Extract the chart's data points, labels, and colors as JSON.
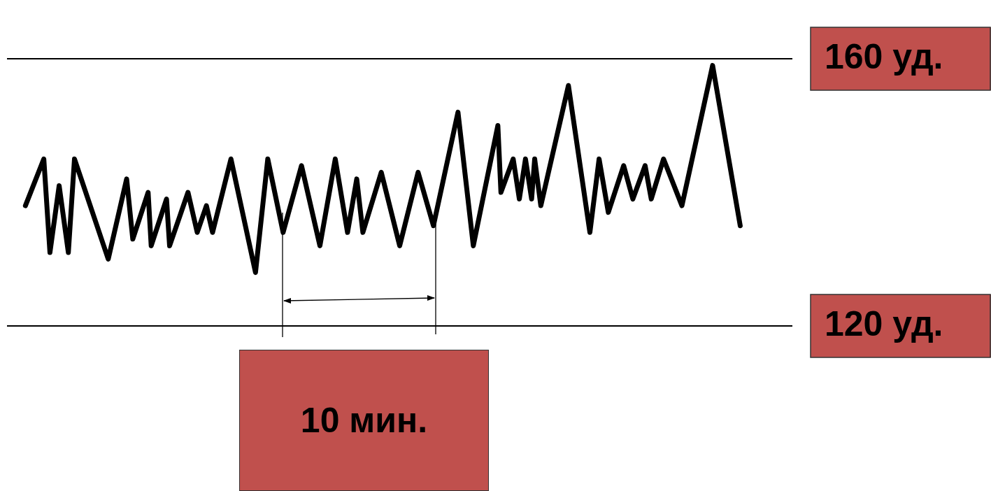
{
  "chart_data": {
    "type": "line",
    "categories": [
      null,
      null,
      null,
      null,
      null,
      null,
      null,
      null,
      null,
      null,
      null,
      null,
      null,
      null,
      null,
      null,
      null,
      null,
      null,
      null,
      null,
      null,
      null,
      null,
      null,
      null,
      null,
      null,
      null,
      null,
      null,
      null,
      null,
      null,
      null,
      null,
      null,
      null,
      null,
      null,
      null,
      null,
      null,
      null,
      null,
      null,
      null,
      null,
      null,
      null,
      null,
      null,
      null,
      null,
      null,
      null,
      null,
      null,
      null,
      null,
      null,
      null,
      null,
      null,
      null,
      null,
      null,
      null,
      null,
      null,
      null,
      null,
      null,
      null,
      null,
      null,
      null,
      null,
      null,
      null,
      null,
      null,
      null,
      null,
      null,
      null,
      null,
      null,
      null,
      null,
      null,
      null,
      null,
      null,
      null,
      null,
      null,
      null,
      null,
      null,
      null,
      null,
      null,
      null,
      null,
      null,
      null,
      null,
      null,
      null,
      null,
      null,
      null,
      null,
      null,
      null,
      null,
      null,
      null,
      null,
      null,
      null,
      null,
      null,
      null,
      null,
      null,
      null,
      null,
      null,
      null,
      null,
      null,
      null,
      null,
      null,
      null,
      null,
      null,
      null,
      null,
      null,
      null,
      null,
      null,
      null,
      null,
      null,
      null,
      null,
      null,
      null,
      null,
      null,
      null,
      null,
      null,
      null,
      null,
      null,
      null,
      null,
      null,
      null,
      null,
      null,
      null,
      null,
      null,
      null,
      null,
      null,
      null,
      null,
      null,
      null,
      null,
      null,
      null,
      null,
      null,
      null,
      null,
      null,
      null,
      null,
      null,
      null,
      null,
      null,
      null,
      null,
      null,
      null,
      null,
      null,
      null,
      null,
      null,
      null,
      null,
      null,
      null,
      null,
      null,
      null,
      null,
      null,
      null,
      null,
      null,
      null,
      null,
      null,
      null,
      null,
      null,
      null,
      null,
      null,
      null,
      null,
      null,
      null,
      null,
      null,
      null,
      null,
      null,
      null,
      null,
      null,
      null,
      null,
      null,
      null,
      null,
      null,
      null,
      null,
      null,
      null,
      null,
      null,
      null,
      null,
      null,
      null,
      null,
      null,
      null,
      null,
      null,
      null,
      null,
      null,
      null
    ],
    "series": [
      {
        "color": "#000000",
        "values": [
          null,
          null,
          null,
          null,
          null,
          null,
          138,
          null,
          null,
          null,
          null,
          null,
          145,
          null,
          131,
          null,
          null,
          141,
          null,
          null,
          131,
          null,
          145,
          null,
          null,
          null,
          null,
          null,
          null,
          null,
          null,
          null,
          null,
          130,
          null,
          null,
          null,
          null,
          null,
          142,
          null,
          133,
          null,
          null,
          null,
          null,
          140,
          132,
          null,
          null,
          null,
          null,
          139,
          132,
          null,
          null,
          null,
          null,
          null,
          140,
          null,
          null,
          134,
          null,
          null,
          138,
          null,
          134,
          null,
          null,
          null,
          null,
          null,
          145,
          null,
          null,
          null,
          null,
          null,
          null,
          null,
          128,
          null,
          null,
          null,
          145,
          null,
          null,
          null,
          null,
          134,
          null,
          null,
          null,
          null,
          null,
          144,
          null,
          null,
          null,
          null,
          null,
          132,
          null,
          null,
          null,
          null,
          145,
          null,
          null,
          null,
          134,
          null,
          null,
          142,
          null,
          134,
          null,
          null,
          null,
          null,
          null,
          143,
          null,
          null,
          null,
          null,
          null,
          132,
          null,
          null,
          null,
          null,
          null,
          143,
          null,
          null,
          null,
          null,
          135,
          null,
          null,
          null,
          null,
          null,
          null,
          null,
          152,
          null,
          null,
          null,
          null,
          132,
          null,
          null,
          null,
          null,
          null,
          null,
          null,
          150,
          140,
          null,
          null,
          null,
          145,
          null,
          139,
          null,
          145,
          null,
          139,
          145,
          null,
          138,
          null,
          null,
          null,
          null,
          null,
          null,
          null,
          null,
          156,
          null,
          null,
          null,
          null,
          null,
          null,
          134,
          null,
          null,
          145,
          null,
          null,
          137,
          null,
          null,
          null,
          null,
          144,
          null,
          null,
          139,
          null,
          null,
          null,
          144,
          null,
          139,
          null,
          null,
          null,
          145,
          null,
          null,
          null,
          null,
          null,
          138,
          null,
          null,
          null,
          null,
          null,
          null,
          null,
          null,
          null,
          159,
          null,
          null,
          null,
          null,
          null,
          null,
          null,
          null,
          135,
          null,
          null,
          null,
          null,
          null,
          null,
          null,
          null,
          null,
          null,
          null,
          null,
          null,
          null,
          null,
          null,
          null
        ]
      }
    ],
    "ylim": [
      120,
      160
    ],
    "yticks": [
      {
        "value": 120,
        "label": "120 уд."
      },
      {
        "value": 160,
        "label": "160 уд."
      }
    ],
    "tick_labels": "y",
    "grid": "y",
    "legend": false,
    "marker": "none",
    "line_style": "solid",
    "annotations": [
      "10 мин."
    ]
  }
}
